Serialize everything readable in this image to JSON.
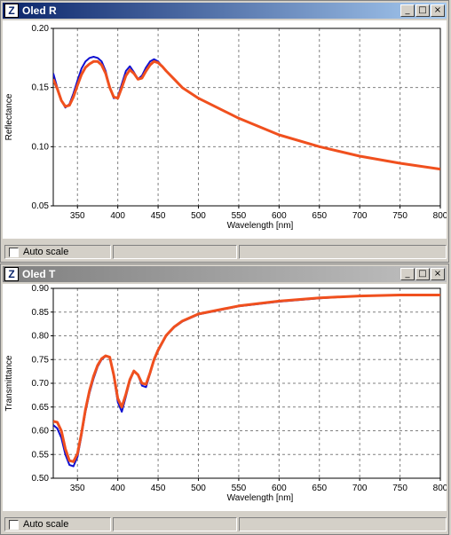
{
  "windows": [
    {
      "title": "Oled R",
      "icon": "app-icon",
      "title_buttons": [
        "_",
        "□",
        "×"
      ],
      "autoscale_label": "Auto scale",
      "chart_data": {
        "type": "line",
        "title": "",
        "xlabel": "Wavelength [nm]",
        "ylabel": "Reflectance",
        "xlim": [
          320,
          800
        ],
        "ylim": [
          0.05,
          0.2
        ],
        "xticks": [
          350,
          400,
          450,
          500,
          550,
          600,
          650,
          700,
          750,
          800
        ],
        "yticks": [
          0.05,
          0.1,
          0.15,
          0.2
        ],
        "ytick_labels": [
          "0.05",
          "0.10",
          "0.15",
          "0.20"
        ],
        "grid": true,
        "series": [
          {
            "color": "#1010d0",
            "x": [
              320,
              325,
              330,
              335,
              340,
              345,
              350,
              355,
              360,
              365,
              370,
              375,
              380,
              385,
              390,
              395,
              400,
              405,
              410,
              415,
              420,
              425,
              430,
              435,
              440,
              445,
              450,
              455,
              460,
              470,
              480,
              500,
              550,
              600,
              650,
              700,
              750,
              800
            ],
            "y": [
              0.162,
              0.15,
              0.139,
              0.133,
              0.136,
              0.145,
              0.156,
              0.166,
              0.172,
              0.175,
              0.176,
              0.175,
              0.172,
              0.164,
              0.15,
              0.141,
              0.142,
              0.153,
              0.164,
              0.168,
              0.163,
              0.157,
              0.16,
              0.167,
              0.172,
              0.174,
              0.172,
              0.168,
              0.164,
              0.157,
              0.15,
              0.141,
              0.124,
              0.11,
              0.1,
              0.092,
              0.086,
              0.081
            ]
          },
          {
            "color": "#f0501e",
            "x": [
              320,
              325,
              330,
              335,
              340,
              345,
              350,
              355,
              360,
              365,
              370,
              375,
              380,
              385,
              390,
              395,
              400,
              405,
              410,
              415,
              420,
              425,
              430,
              435,
              440,
              445,
              450,
              455,
              460,
              470,
              480,
              500,
              550,
              600,
              650,
              700,
              750,
              800
            ],
            "y": [
              0.157,
              0.149,
              0.139,
              0.134,
              0.135,
              0.142,
              0.152,
              0.161,
              0.167,
              0.17,
              0.172,
              0.172,
              0.169,
              0.162,
              0.15,
              0.142,
              0.141,
              0.15,
              0.16,
              0.165,
              0.162,
              0.157,
              0.158,
              0.164,
              0.169,
              0.172,
              0.171,
              0.168,
              0.164,
              0.157,
              0.15,
              0.141,
              0.124,
              0.11,
              0.1,
              0.092,
              0.086,
              0.081
            ]
          }
        ]
      }
    },
    {
      "title": "Oled T",
      "icon": "app-icon",
      "title_buttons": [
        "_",
        "□",
        "×"
      ],
      "autoscale_label": "Auto scale",
      "chart_data": {
        "type": "line",
        "title": "",
        "xlabel": "Wavelength [nm]",
        "ylabel": "Transmittance",
        "xlim": [
          320,
          800
        ],
        "ylim": [
          0.5,
          0.9
        ],
        "xticks": [
          350,
          400,
          450,
          500,
          550,
          600,
          650,
          700,
          750,
          800
        ],
        "yticks": [
          0.5,
          0.55,
          0.6,
          0.65,
          0.7,
          0.75,
          0.8,
          0.85,
          0.9
        ],
        "ytick_labels": [
          "0.50",
          "0.55",
          "0.60",
          "0.65",
          "0.70",
          "0.75",
          "0.80",
          "0.85",
          "0.90"
        ],
        "grid": true,
        "series": [
          {
            "color": "#1010d0",
            "x": [
              320,
              325,
              330,
              335,
              340,
              345,
              350,
              355,
              360,
              365,
              370,
              375,
              380,
              385,
              390,
              395,
              400,
              405,
              410,
              415,
              420,
              425,
              430,
              435,
              440,
              445,
              450,
              460,
              470,
              480,
              500,
              550,
              600,
              650,
              700,
              750,
              800
            ],
            "y": [
              0.612,
              0.605,
              0.585,
              0.55,
              0.528,
              0.525,
              0.545,
              0.59,
              0.64,
              0.68,
              0.71,
              0.735,
              0.75,
              0.757,
              0.755,
              0.715,
              0.66,
              0.64,
              0.672,
              0.705,
              0.725,
              0.718,
              0.695,
              0.692,
              0.72,
              0.748,
              0.768,
              0.8,
              0.818,
              0.83,
              0.845,
              0.862,
              0.872,
              0.879,
              0.884,
              0.886,
              0.887
            ]
          },
          {
            "color": "#f0501e",
            "x": [
              320,
              325,
              330,
              335,
              340,
              345,
              350,
              355,
              360,
              365,
              370,
              375,
              380,
              385,
              390,
              395,
              400,
              405,
              410,
              415,
              420,
              425,
              430,
              435,
              440,
              445,
              450,
              460,
              470,
              480,
              500,
              550,
              600,
              650,
              700,
              750,
              800
            ],
            "y": [
              0.62,
              0.618,
              0.6,
              0.562,
              0.537,
              0.535,
              0.552,
              0.595,
              0.645,
              0.685,
              0.715,
              0.738,
              0.752,
              0.758,
              0.755,
              0.718,
              0.668,
              0.65,
              0.677,
              0.708,
              0.726,
              0.718,
              0.7,
              0.698,
              0.722,
              0.75,
              0.77,
              0.801,
              0.819,
              0.831,
              0.846,
              0.863,
              0.873,
              0.88,
              0.884,
              0.886,
              0.886
            ]
          }
        ]
      }
    }
  ]
}
